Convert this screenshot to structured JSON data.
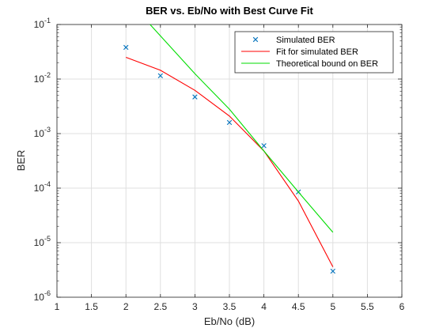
{
  "chart_data": {
    "type": "line",
    "title": "BER vs. Eb/No with Best Curve Fit",
    "xlabel": "Eb/No (dB)",
    "ylabel": "BER",
    "xlim": [
      1,
      6
    ],
    "ylim": [
      1e-06,
      0.1
    ],
    "yscale": "log",
    "grid": true,
    "legend_position": "top-right",
    "x_ticks": [
      1,
      1.5,
      2,
      2.5,
      3,
      3.5,
      4,
      4.5,
      5,
      5.5,
      6
    ],
    "x_tick_labels": [
      "1",
      "1.5",
      "2",
      "2.5",
      "3",
      "3.5",
      "4",
      "4.5",
      "5",
      "5.5",
      "6"
    ],
    "y_ticks": [
      {
        "value": 1e-06,
        "base": "10",
        "exp": "-6"
      },
      {
        "value": 1e-05,
        "base": "10",
        "exp": "-5"
      },
      {
        "value": 0.0001,
        "base": "10",
        "exp": "-4"
      },
      {
        "value": 0.001,
        "base": "10",
        "exp": "-3"
      },
      {
        "value": 0.01,
        "base": "10",
        "exp": "-2"
      },
      {
        "value": 0.1,
        "base": "10",
        "exp": "-1"
      }
    ],
    "series": [
      {
        "name": "Simulated BER",
        "style": "markers",
        "marker": "x",
        "color": "#0072BD",
        "x": [
          2,
          2.5,
          3,
          3.5,
          4,
          4.5,
          5
        ],
        "y": [
          0.038,
          0.0115,
          0.0047,
          0.0016,
          0.0006,
          8.5e-05,
          3e-06
        ]
      },
      {
        "name": "Fit for simulated BER",
        "style": "line",
        "color": "#ff0000",
        "x": [
          2,
          2.5,
          3,
          3.5,
          4,
          4.5,
          5
        ],
        "y": [
          0.025,
          0.0145,
          0.0062,
          0.0021,
          0.00048,
          5.8e-05,
          3.6e-06
        ]
      },
      {
        "name": "Theoretical bound on BER",
        "style": "line",
        "color": "#00dd00",
        "x": [
          2.35,
          3,
          3.5,
          4,
          4.5,
          5
        ],
        "y": [
          0.1,
          0.0125,
          0.0028,
          0.00048,
          8.5e-05,
          1.55e-05
        ]
      }
    ]
  }
}
